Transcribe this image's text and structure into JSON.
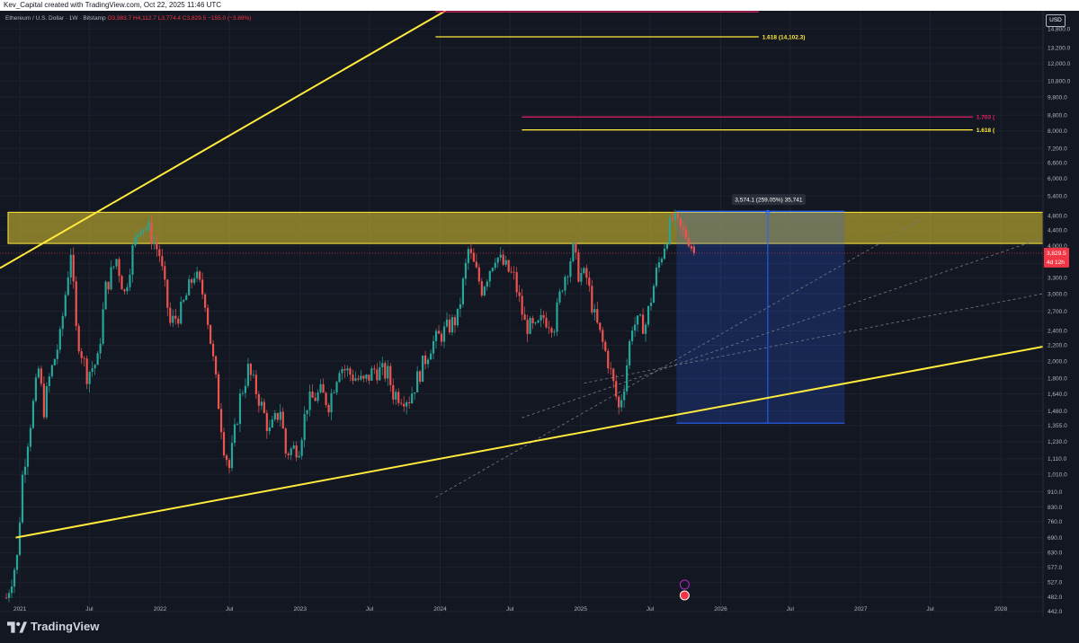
{
  "header": {
    "creator": "Kev_Capital created with TradingView.com, Oct 22, 2025 11:46 UTC",
    "symbol": "Ethereum / U.S. Dollar · 1W · Bitstamp",
    "open": "O3,983.7",
    "high": "H4,112.7",
    "low": "L3,774.4",
    "close": "C3,829.5",
    "change": "−155.0 (−3.89%)",
    "currency": "USD"
  },
  "footer": {
    "brand": "TradingView"
  },
  "colors": {
    "background": "#131722",
    "up": "#26a69a",
    "down": "#ef5350",
    "trendline": "#ffeb3b",
    "zone_fill": "#c9b62e",
    "fib_pink": "#e91e63",
    "measure": "#2962ff",
    "price_tag": "#f23645"
  },
  "chart_data": {
    "type": "candlestick",
    "scale": "log",
    "title": "",
    "xlabel": "",
    "ylabel": "",
    "ylim": [
      430,
      16500
    ],
    "xlim": [
      "2020-11-10",
      "2028-04-20"
    ],
    "yticks": [
      442.0,
      482.0,
      527.0,
      577.0,
      630.0,
      690.0,
      760.0,
      830.0,
      910.0,
      1010.0,
      1110.0,
      1230.0,
      1355.0,
      1480.0,
      1640.0,
      1800.0,
      2000.0,
      2200.0,
      2400.0,
      2700.0,
      3000.0,
      3300.0,
      3600.0,
      4000.0,
      4400.0,
      4800.0,
      5400.0,
      6000.0,
      6600.0,
      7200.0,
      8000.0,
      8800.0,
      9800.0,
      10800.0,
      12000.0,
      13200.0,
      14800.0
    ],
    "xticks": [
      {
        "label": "2021",
        "date": "2021-01-01"
      },
      {
        "label": "Jul",
        "date": "2021-07-01"
      },
      {
        "label": "2022",
        "date": "2022-01-01"
      },
      {
        "label": "Jul",
        "date": "2022-07-01"
      },
      {
        "label": "2023",
        "date": "2023-01-01"
      },
      {
        "label": "Jul",
        "date": "2023-07-01"
      },
      {
        "label": "2024",
        "date": "2024-01-01"
      },
      {
        "label": "Jul",
        "date": "2024-07-01"
      },
      {
        "label": "2025",
        "date": "2025-01-01"
      },
      {
        "label": "Jul",
        "date": "2025-07-01"
      },
      {
        "label": "2026",
        "date": "2026-01-01"
      },
      {
        "label": "Jul",
        "date": "2026-07-01"
      },
      {
        "label": "2027",
        "date": "2027-01-01"
      },
      {
        "label": "Jul",
        "date": "2027-07-01"
      },
      {
        "label": "2028",
        "date": "2028-01-01"
      }
    ],
    "price_path": [
      [
        "2020-11-23",
        480
      ],
      [
        "2020-12-21",
        610
      ],
      [
        "2021-01-04",
        1000
      ],
      [
        "2021-01-18",
        1250
      ],
      [
        "2021-02-15",
        1900
      ],
      [
        "2021-03-01",
        1500
      ],
      [
        "2021-03-15",
        1800
      ],
      [
        "2021-04-12",
        2300
      ],
      [
        "2021-05-10",
        3900
      ],
      [
        "2021-05-24",
        2400
      ],
      [
        "2021-06-21",
        1850
      ],
      [
        "2021-07-19",
        2000
      ],
      [
        "2021-08-09",
        3100
      ],
      [
        "2021-09-06",
        3700
      ],
      [
        "2021-09-27",
        3000
      ],
      [
        "2021-10-18",
        3900
      ],
      [
        "2021-11-08",
        4600
      ],
      [
        "2021-11-29",
        4400
      ],
      [
        "2021-12-27",
        3800
      ],
      [
        "2022-01-24",
        2500
      ],
      [
        "2022-02-21",
        2700
      ],
      [
        "2022-03-28",
        3400
      ],
      [
        "2022-04-25",
        2900
      ],
      [
        "2022-05-16",
        2000
      ],
      [
        "2022-06-13",
        1200
      ],
      [
        "2022-06-27",
        1050
      ],
      [
        "2022-07-25",
        1600
      ],
      [
        "2022-08-15",
        1900
      ],
      [
        "2022-09-12",
        1600
      ],
      [
        "2022-10-10",
        1300
      ],
      [
        "2022-11-07",
        1500
      ],
      [
        "2022-11-21",
        1150
      ],
      [
        "2022-12-26",
        1200
      ],
      [
        "2023-01-16",
        1550
      ],
      [
        "2023-02-20",
        1650
      ],
      [
        "2023-03-13",
        1550
      ],
      [
        "2023-04-10",
        1950
      ],
      [
        "2023-05-08",
        1850
      ],
      [
        "2023-06-12",
        1750
      ],
      [
        "2023-07-10",
        1900
      ],
      [
        "2023-08-14",
        1850
      ],
      [
        "2023-08-28",
        1650
      ],
      [
        "2023-10-09",
        1600
      ],
      [
        "2023-10-30",
        1800
      ],
      [
        "2023-12-04",
        2200
      ],
      [
        "2024-01-01",
        2350
      ],
      [
        "2024-02-12",
        2600
      ],
      [
        "2024-03-11",
        3900
      ],
      [
        "2024-04-15",
        3100
      ],
      [
        "2024-05-20",
        3800
      ],
      [
        "2024-06-17",
        3500
      ],
      [
        "2024-07-08",
        3300
      ],
      [
        "2024-08-05",
        2500
      ],
      [
        "2024-09-02",
        2400
      ],
      [
        "2024-09-23",
        2600
      ],
      [
        "2024-10-21",
        2500
      ],
      [
        "2024-11-11",
        3200
      ],
      [
        "2024-12-09",
        3900
      ],
      [
        "2024-12-23",
        3400
      ],
      [
        "2025-01-13",
        3300
      ],
      [
        "2025-02-03",
        2600
      ],
      [
        "2025-03-10",
        2000
      ],
      [
        "2025-04-07",
        1500
      ],
      [
        "2025-04-21",
        1750
      ],
      [
        "2025-05-12",
        2500
      ],
      [
        "2025-06-16",
        2500
      ],
      [
        "2025-07-14",
        3400
      ],
      [
        "2025-08-11",
        4300
      ],
      [
        "2025-08-25",
        4700
      ],
      [
        "2025-09-15",
        4400
      ],
      [
        "2025-10-06",
        4200
      ],
      [
        "2025-10-20",
        3829.5
      ]
    ],
    "resistance_zone": {
      "from": "2020-12-01",
      "to": "2028-04-20",
      "low": 4060,
      "high": 4900
    },
    "lower_trendline": [
      [
        "2020-12-21",
        690
      ],
      [
        "2028-04-20",
        2180
      ]
    ],
    "upper_trendline": [
      [
        "2020-11-10",
        3500
      ],
      [
        "2024-01-15",
        16500
      ]
    ],
    "dashed_lines": [
      [
        [
          "2023-12-20",
          880
        ],
        [
          "2027-06-10",
          4700
        ]
      ],
      [
        [
          "2024-08-01",
          1420
        ],
        [
          "2028-04-20",
          4200
        ]
      ],
      [
        [
          "2025-01-10",
          1750
        ],
        [
          "2028-04-20",
          3000
        ]
      ]
    ],
    "fib_levels": [
      {
        "label": "1.618 (14,102.3)",
        "price": 14102.3,
        "from": "2023-12-20",
        "to": "2026-04-10",
        "color": "#ffeb3b"
      },
      {
        "label": "1.703 (",
        "price": 8700,
        "from": "2024-08-01",
        "to": "2027-10-20",
        "color": "#e91e63"
      },
      {
        "label": "1.618 (",
        "price": 8050,
        "from": "2024-08-01",
        "to": "2027-10-20",
        "color": "#ffeb3b"
      },
      {
        "label": "",
        "price": 16400,
        "from": "2023-12-20",
        "to": "2026-04-10",
        "color": "#e91e63"
      }
    ],
    "measure": {
      "from": "2025-09-08",
      "to": "2026-11-20",
      "top": 4930,
      "bottom": 1375,
      "label": "3,574.1 (259.05%) 35,741"
    },
    "last_price": {
      "value": 3829.5,
      "label": "3,829.5",
      "countdown": "4d 12h"
    }
  }
}
